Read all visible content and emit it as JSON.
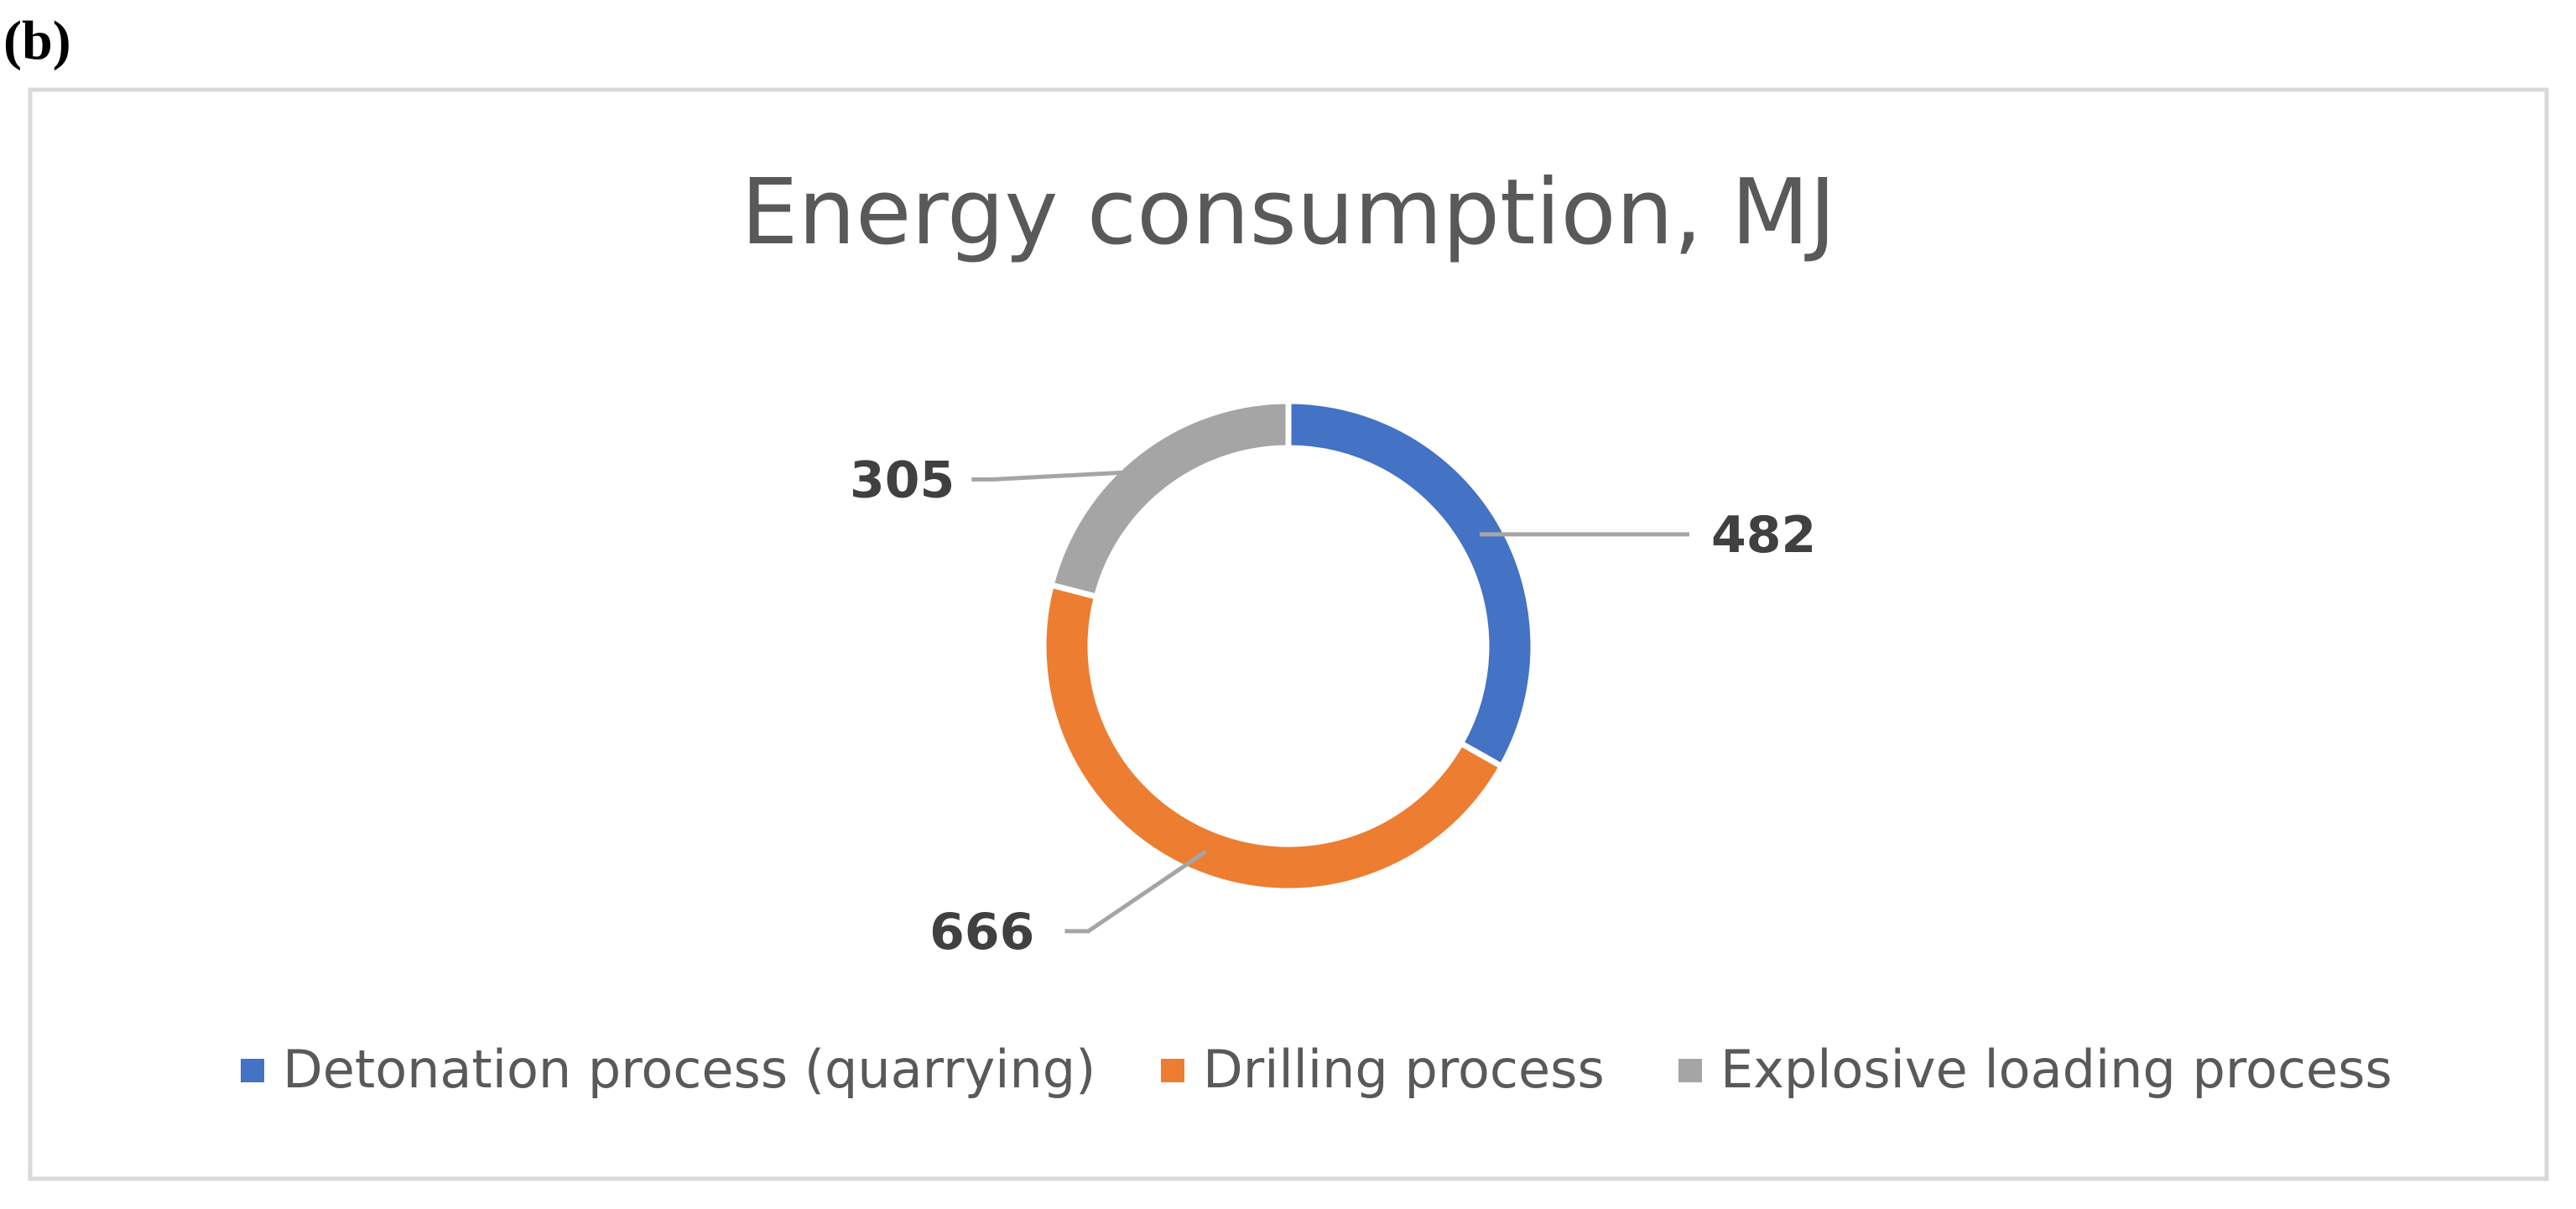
{
  "panel_label": "(b)",
  "chart_data": {
    "type": "pie",
    "variant": "donut",
    "title": "Energy consumption, MJ",
    "slices": [
      {
        "name": "Detonation process (quarrying)",
        "value": 482,
        "color": "#4472C4"
      },
      {
        "name": "Drilling process",
        "value": 666,
        "color": "#ED7D31"
      },
      {
        "name": "Explosive loading process",
        "value": 305,
        "color": "#A5A5A5"
      }
    ],
    "data_labels": [
      "482",
      "666",
      "305"
    ],
    "legend_position": "bottom",
    "leader_line_color": "#A5A5A5",
    "border_color": "#D9D9D9"
  }
}
